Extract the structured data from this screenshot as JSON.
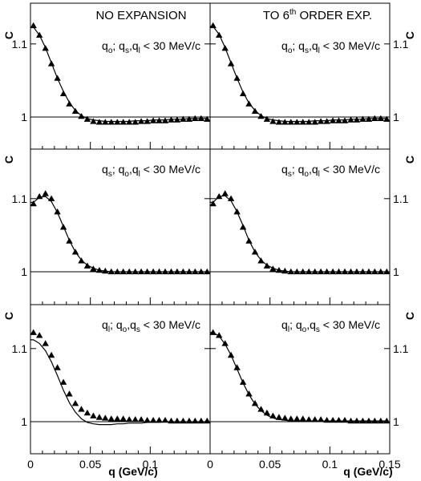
{
  "figure": {
    "x_axis_label": "q (GeV/c)",
    "y_axis_label": "C",
    "column_titles": [
      "NO EXPANSION",
      "TO 6th ORDER EXP."
    ],
    "row_labels": [
      {
        "main": "q",
        "sub": "o",
        "rest": "; q",
        "sub2": "s",
        "rest2": ",q",
        "sub3": "l",
        "tail": " < 30 MeV/c"
      },
      {
        "main": "q",
        "sub": "s",
        "rest": "; q",
        "sub2": "o",
        "rest2": ",q",
        "sub3": "l",
        "tail": " < 30 MeV/c"
      },
      {
        "main": "q",
        "sub": "l",
        "rest": "; q",
        "sub2": "o",
        "rest2": ",q",
        "sub3": "s",
        "tail": " < 30 MeV/c"
      }
    ],
    "panel_legend_text": [
      "qo; qs,ql < 30 MeV/c",
      "qs; qo,ql < 30 MeV/c",
      "ql; qo,qs < 30 MeV/c"
    ],
    "column_title_right_parts": {
      "before": "TO 6",
      "sup": "th",
      "after": " ORDER EXP."
    }
  },
  "chart_data": {
    "type": "scatter",
    "layout": "3 rows x 2 columns of panels, shared x axis",
    "xlabel": "q (GeV/c)",
    "ylabel": "C",
    "xlim": [
      0,
      0.15
    ],
    "ylim": [
      0.95,
      1.16
    ],
    "x_ticks": [
      0,
      0.05,
      0.1,
      0.15
    ],
    "x_tick_labels": [
      "0",
      "0.05",
      "0.1",
      "0.15"
    ],
    "y_ticks": [
      1,
      1.1
    ],
    "y_tick_labels": [
      "1",
      "1.1"
    ],
    "reference_line": 1,
    "panels": [
      {
        "row": 0,
        "col": 0,
        "label": "qo; qs,ql < 30 MeV/c",
        "x": [
          0.0025,
          0.0075,
          0.0125,
          0.0175,
          0.0225,
          0.0275,
          0.0325,
          0.0375,
          0.0425,
          0.0475,
          0.0525,
          0.0575,
          0.0625,
          0.0675,
          0.0725,
          0.0775,
          0.0825,
          0.0875,
          0.0925,
          0.0975,
          0.1025,
          0.1075,
          0.1125,
          0.1175,
          0.1225,
          0.1275,
          0.1325,
          0.1375,
          0.1425,
          0.1475
        ],
        "points": [
          1.125,
          1.112,
          1.094,
          1.073,
          1.053,
          1.032,
          1.018,
          1.008,
          1.001,
          0.997,
          0.994,
          0.993,
          0.993,
          0.993,
          0.993,
          0.993,
          0.993,
          0.993,
          0.994,
          0.994,
          0.995,
          0.995,
          0.995,
          0.996,
          0.996,
          0.997,
          0.997,
          0.998,
          0.998,
          0.997
        ],
        "fit": [
          1.123,
          1.112,
          1.095,
          1.074,
          1.053,
          1.035,
          1.02,
          1.009,
          1.002,
          0.998,
          0.996,
          0.995,
          0.994,
          0.994,
          0.994,
          0.994,
          0.994,
          0.995,
          0.995,
          0.995,
          0.996,
          0.996,
          0.996,
          0.997,
          0.997,
          0.997,
          0.998,
          0.998,
          0.998,
          0.998
        ]
      },
      {
        "row": 0,
        "col": 1,
        "label": "qo; qs,ql < 30 MeV/c",
        "x": [
          0.0025,
          0.0075,
          0.0125,
          0.0175,
          0.0225,
          0.0275,
          0.0325,
          0.0375,
          0.0425,
          0.0475,
          0.0525,
          0.0575,
          0.0625,
          0.0675,
          0.0725,
          0.0775,
          0.0825,
          0.0875,
          0.0925,
          0.0975,
          0.1025,
          0.1075,
          0.1125,
          0.1175,
          0.1225,
          0.1275,
          0.1325,
          0.1375,
          0.1425,
          0.1475
        ],
        "points": [
          1.125,
          1.112,
          1.094,
          1.073,
          1.053,
          1.032,
          1.018,
          1.008,
          1.001,
          0.997,
          0.994,
          0.993,
          0.993,
          0.993,
          0.993,
          0.993,
          0.993,
          0.993,
          0.994,
          0.994,
          0.995,
          0.995,
          0.995,
          0.996,
          0.996,
          0.997,
          0.997,
          0.998,
          0.998,
          0.997
        ],
        "fit": [
          1.124,
          1.113,
          1.095,
          1.074,
          1.053,
          1.034,
          1.019,
          1.009,
          1.002,
          0.998,
          0.996,
          0.995,
          0.994,
          0.994,
          0.994,
          0.994,
          0.994,
          0.995,
          0.995,
          0.995,
          0.996,
          0.996,
          0.996,
          0.997,
          0.997,
          0.997,
          0.998,
          0.998,
          0.998,
          0.998
        ]
      },
      {
        "row": 1,
        "col": 0,
        "label": "qs; qo,ql < 30 MeV/c",
        "x": [
          0.0025,
          0.0075,
          0.0125,
          0.0175,
          0.0225,
          0.0275,
          0.0325,
          0.0375,
          0.0425,
          0.0475,
          0.0525,
          0.0575,
          0.0625,
          0.0675,
          0.0725,
          0.0775,
          0.0825,
          0.0875,
          0.0925,
          0.0975,
          0.1025,
          0.1075,
          0.1125,
          0.1175,
          0.1225,
          0.1275,
          0.1325,
          0.1375,
          0.1425,
          0.1475
        ],
        "points": [
          1.093,
          1.103,
          1.107,
          1.1,
          1.082,
          1.061,
          1.042,
          1.027,
          1.015,
          1.008,
          1.004,
          1.002,
          1.001,
          1.0,
          1.0,
          1.0,
          1.0,
          1.0,
          1.0,
          1.0,
          1.0,
          1.0,
          1.0,
          1.0,
          1.0,
          1.0,
          1.0,
          1.0,
          1.0,
          1.0
        ],
        "fit": [
          1.095,
          1.102,
          1.103,
          1.096,
          1.081,
          1.062,
          1.043,
          1.027,
          1.016,
          1.009,
          1.005,
          1.002,
          1.001,
          1.0,
          1.0,
          1.0,
          1.0,
          1.0,
          1.0,
          1.0,
          1.0,
          1.0,
          1.0,
          1.0,
          1.0,
          1.0,
          1.0,
          1.0,
          1.0,
          1.0
        ]
      },
      {
        "row": 1,
        "col": 1,
        "label": "qs; qo,ql < 30 MeV/c",
        "x": [
          0.0025,
          0.0075,
          0.0125,
          0.0175,
          0.0225,
          0.0275,
          0.0325,
          0.0375,
          0.0425,
          0.0475,
          0.0525,
          0.0575,
          0.0625,
          0.0675,
          0.0725,
          0.0775,
          0.0825,
          0.0875,
          0.0925,
          0.0975,
          0.1025,
          0.1075,
          0.1125,
          0.1175,
          0.1225,
          0.1275,
          0.1325,
          0.1375,
          0.1425,
          0.1475
        ],
        "points": [
          1.093,
          1.103,
          1.107,
          1.1,
          1.082,
          1.061,
          1.042,
          1.027,
          1.015,
          1.008,
          1.004,
          1.002,
          1.001,
          1.0,
          1.0,
          1.0,
          1.0,
          1.0,
          1.0,
          1.0,
          1.0,
          1.0,
          1.0,
          1.0,
          1.0,
          1.0,
          1.0,
          1.0,
          1.0,
          1.0
        ],
        "fit": [
          1.095,
          1.103,
          1.104,
          1.097,
          1.082,
          1.063,
          1.043,
          1.027,
          1.016,
          1.009,
          1.005,
          1.002,
          1.001,
          1.0,
          1.0,
          1.0,
          1.0,
          1.0,
          1.0,
          1.0,
          1.0,
          1.0,
          1.0,
          1.0,
          1.0,
          1.0,
          1.0,
          1.0,
          1.0,
          1.0
        ]
      },
      {
        "row": 2,
        "col": 0,
        "label": "ql; qo,qs < 30 MeV/c",
        "x": [
          0.0025,
          0.0075,
          0.0125,
          0.0175,
          0.0225,
          0.0275,
          0.0325,
          0.0375,
          0.0425,
          0.0475,
          0.0525,
          0.0575,
          0.0625,
          0.0675,
          0.0725,
          0.0775,
          0.0825,
          0.0875,
          0.0925,
          0.0975,
          0.1025,
          0.1075,
          0.1125,
          0.1175,
          0.1225,
          0.1275,
          0.1325,
          0.1375,
          0.1425,
          0.1475
        ],
        "points": [
          1.122,
          1.118,
          1.107,
          1.091,
          1.074,
          1.054,
          1.038,
          1.025,
          1.017,
          1.012,
          1.008,
          1.006,
          1.005,
          1.004,
          1.004,
          1.004,
          1.003,
          1.003,
          1.003,
          1.002,
          1.002,
          1.002,
          1.002,
          1.001,
          1.001,
          1.001,
          1.001,
          1.001,
          1.001,
          1.001
        ],
        "fit": [
          1.112,
          1.107,
          1.097,
          1.082,
          1.063,
          1.043,
          1.026,
          1.013,
          1.004,
          0.999,
          0.997,
          0.996,
          0.996,
          0.996,
          0.997,
          0.997,
          0.998,
          0.998,
          0.998,
          0.999,
          0.999,
          0.999,
          1.0,
          1.0,
          1.0,
          1.0,
          1.0,
          1.0,
          1.0,
          1.0
        ]
      },
      {
        "row": 2,
        "col": 1,
        "label": "ql; qo,qs < 30 MeV/c",
        "x": [
          0.0025,
          0.0075,
          0.0125,
          0.0175,
          0.0225,
          0.0275,
          0.0325,
          0.0375,
          0.0425,
          0.0475,
          0.0525,
          0.0575,
          0.0625,
          0.0675,
          0.0725,
          0.0775,
          0.0825,
          0.0875,
          0.0925,
          0.0975,
          0.1025,
          0.1075,
          0.1125,
          0.1175,
          0.1225,
          0.1275,
          0.1325,
          0.1375,
          0.1425,
          0.1475
        ],
        "points": [
          1.122,
          1.118,
          1.107,
          1.091,
          1.074,
          1.054,
          1.038,
          1.025,
          1.017,
          1.012,
          1.008,
          1.006,
          1.005,
          1.004,
          1.004,
          1.004,
          1.003,
          1.003,
          1.003,
          1.002,
          1.002,
          1.002,
          1.002,
          1.001,
          1.001,
          1.001,
          1.001,
          1.001,
          1.001,
          1.001
        ],
        "fit": [
          1.122,
          1.117,
          1.106,
          1.091,
          1.072,
          1.053,
          1.037,
          1.024,
          1.015,
          1.009,
          1.005,
          1.003,
          1.002,
          1.001,
          1.001,
          1.001,
          1.001,
          1.001,
          1.001,
          1.001,
          1.001,
          1.001,
          1.001,
          1.001,
          1.001,
          1.001,
          1.001,
          1.001,
          1.001,
          1.001
        ]
      }
    ]
  }
}
